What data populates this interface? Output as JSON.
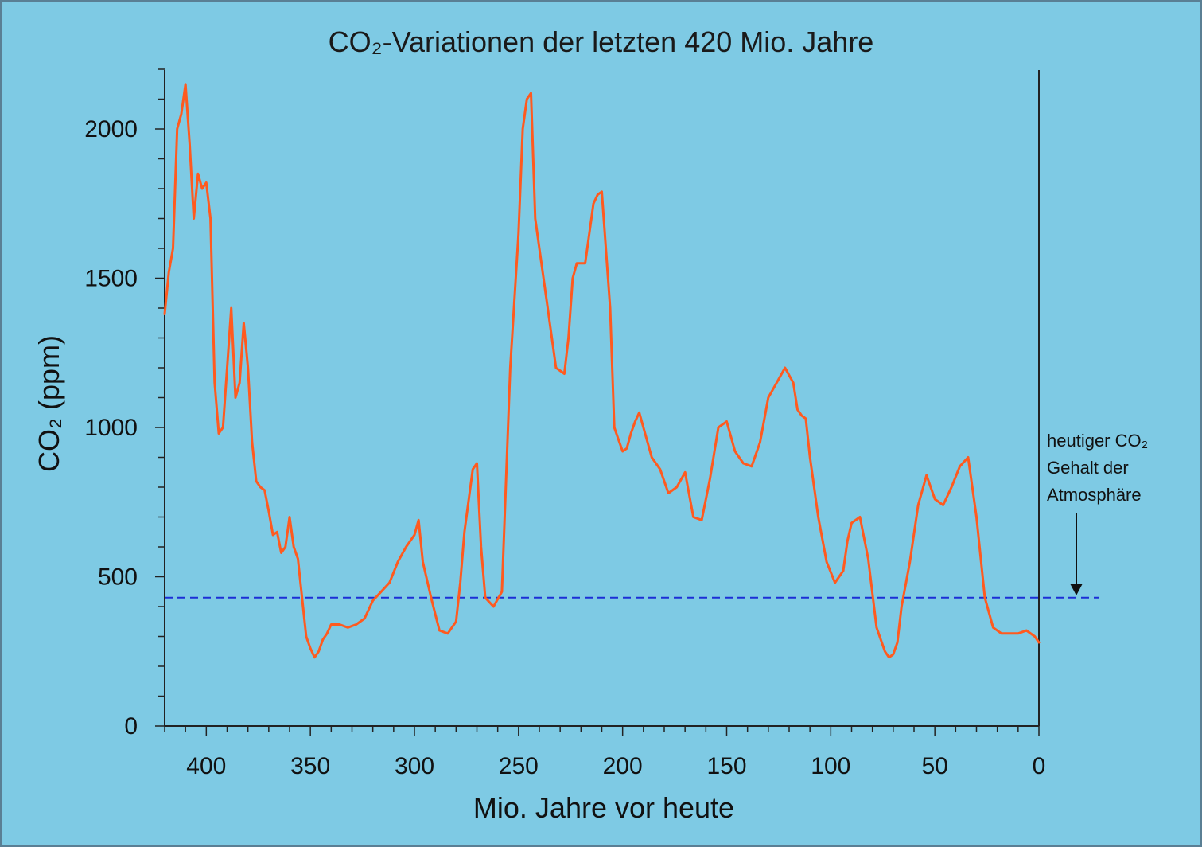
{
  "chart_data": {
    "type": "line",
    "title": "CO₂-Variationen der letzten 420 Mio. Jahre",
    "xlabel": "Mio. Jahre vor heute",
    "ylabel": "CO₂ (ppm)",
    "xlim": [
      420,
      0
    ],
    "ylim": [
      0,
      2200
    ],
    "xticks": [
      400,
      350,
      300,
      250,
      200,
      150,
      100,
      50,
      0
    ],
    "yticks": [
      0,
      500,
      1000,
      1500,
      2000
    ],
    "grid": false,
    "colors": {
      "series": "#ff5a1f",
      "reference": "#1c2fd6",
      "background": "#7ecae4"
    },
    "reference_line": {
      "y": 430,
      "style": "dashed"
    },
    "annotation": {
      "lines": [
        "heutiger CO₂",
        "Gehalt der",
        "Atmosphäre"
      ]
    },
    "series": [
      {
        "x": [
          420,
          418,
          416,
          414,
          412,
          410,
          408,
          406,
          404,
          402,
          400,
          398,
          396,
          394,
          392,
          390,
          388,
          386,
          384,
          382,
          380,
          378,
          376,
          374,
          372,
          370,
          368,
          366,
          364,
          362,
          360,
          358,
          356,
          354,
          352,
          350,
          348,
          346,
          344,
          342,
          340,
          336,
          332,
          328,
          324,
          320,
          316,
          312,
          308,
          304,
          300,
          298,
          296,
          292,
          288,
          284,
          280,
          278,
          276,
          272,
          270,
          268,
          266,
          262,
          258,
          254,
          250,
          248,
          246,
          244,
          242,
          240,
          236,
          232,
          228,
          226,
          224,
          222,
          218,
          214,
          212,
          210,
          206,
          204,
          202,
          200,
          198,
          196,
          194,
          192,
          190,
          186,
          182,
          178,
          174,
          170,
          166,
          162,
          158,
          154,
          150,
          146,
          142,
          138,
          134,
          130,
          126,
          122,
          118,
          116,
          114,
          112,
          110,
          106,
          102,
          98,
          94,
          92,
          90,
          86,
          82,
          78,
          74,
          72,
          70,
          68,
          66,
          62,
          58,
          54,
          50,
          46,
          42,
          38,
          34,
          30,
          26,
          22,
          18,
          14,
          10,
          6,
          2,
          0
        ],
        "y": [
          1380,
          1520,
          1600,
          2000,
          2050,
          2150,
          1950,
          1700,
          1850,
          1800,
          1820,
          1700,
          1150,
          980,
          1000,
          1200,
          1400,
          1100,
          1150,
          1350,
          1200,
          950,
          820,
          800,
          790,
          720,
          640,
          650,
          580,
          600,
          700,
          600,
          560,
          430,
          300,
          260,
          230,
          250,
          290,
          310,
          340,
          340,
          330,
          340,
          360,
          420,
          450,
          480,
          550,
          600,
          640,
          690,
          550,
          430,
          320,
          310,
          350,
          480,
          650,
          860,
          880,
          600,
          430,
          400,
          450,
          1200,
          1650,
          2000,
          2100,
          2120,
          1700,
          1600,
          1400,
          1200,
          1180,
          1300,
          1500,
          1550,
          1550,
          1750,
          1780,
          1790,
          1400,
          1000,
          960,
          920,
          930,
          980,
          1020,
          1050,
          1000,
          900,
          860,
          780,
          800,
          850,
          700,
          690,
          830,
          1000,
          1020,
          920,
          880,
          870,
          950,
          1100,
          1150,
          1200,
          1150,
          1060,
          1040,
          1030,
          900,
          700,
          550,
          480,
          520,
          620,
          680,
          700,
          560,
          330,
          250,
          230,
          240,
          280,
          400,
          550,
          740,
          840,
          760,
          740,
          800,
          870,
          900,
          700,
          430,
          330,
          310,
          310,
          310,
          320,
          300,
          280
        ]
      }
    ]
  }
}
